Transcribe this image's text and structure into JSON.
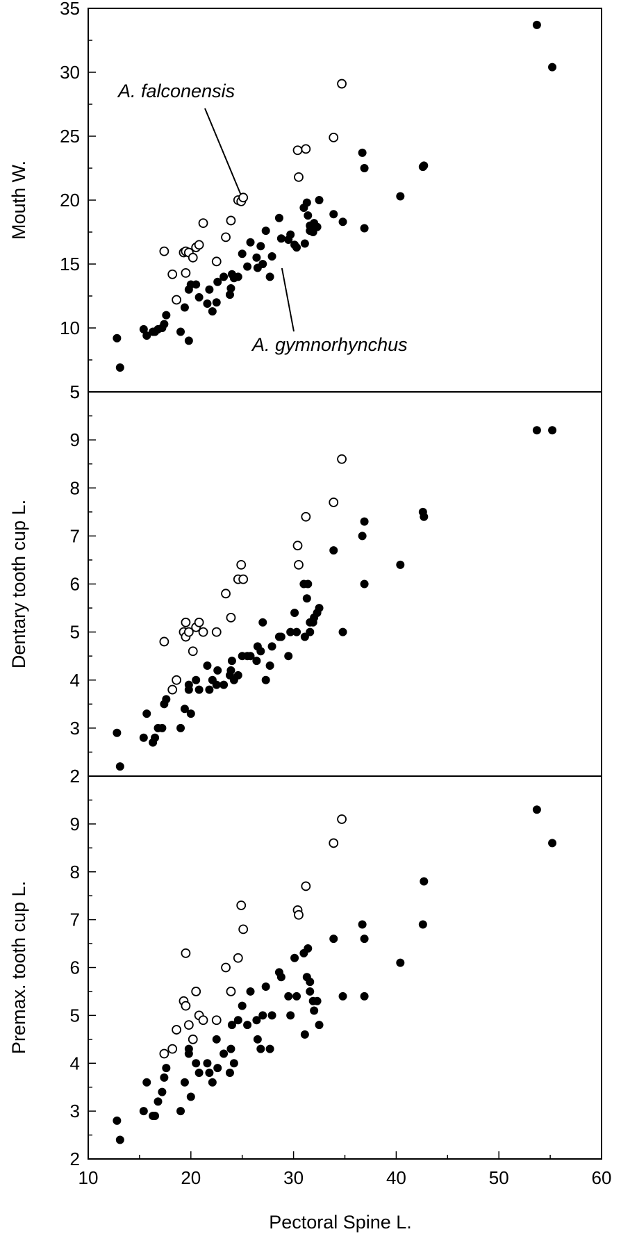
{
  "chart_data": [
    {
      "type": "scatter",
      "xlabel": "",
      "ylabel": "Mouth W.",
      "xlim": [
        10,
        60
      ],
      "ylim": [
        5,
        35
      ],
      "yticks": [
        5,
        10,
        15,
        20,
        25,
        30,
        35
      ],
      "ytick_labels": [
        "5",
        "10",
        "15",
        "20",
        "25",
        "30",
        "35"
      ],
      "grid": false,
      "annotations": [
        {
          "text": "A. falconensis",
          "points_to": [
            25.0,
            20.1
          ]
        },
        {
          "text": "A. gymnorhynchus",
          "points_to": [
            28.8,
            15.0
          ]
        }
      ],
      "series": [
        {
          "marker": "open-circle",
          "points": [
            [
              17.4,
              16.0
            ],
            [
              18.2,
              14.2
            ],
            [
              18.6,
              12.2
            ],
            [
              19.3,
              15.9
            ],
            [
              19.5,
              16.0
            ],
            [
              19.5,
              14.3
            ],
            [
              19.8,
              15.9
            ],
            [
              20.2,
              15.5
            ],
            [
              20.5,
              16.3
            ],
            [
              20.8,
              16.5
            ],
            [
              21.2,
              18.2
            ],
            [
              22.5,
              15.2
            ],
            [
              23.4,
              17.1
            ],
            [
              23.9,
              18.4
            ],
            [
              24.6,
              20.0
            ],
            [
              24.9,
              19.9
            ],
            [
              25.1,
              20.2
            ],
            [
              30.4,
              23.9
            ],
            [
              30.5,
              21.8
            ],
            [
              31.2,
              24.0
            ],
            [
              33.9,
              24.9
            ],
            [
              34.7,
              29.1
            ]
          ]
        },
        {
          "marker": "filled-circle",
          "points": [
            [
              12.8,
              9.2
            ],
            [
              13.1,
              6.9
            ],
            [
              15.4,
              9.9
            ],
            [
              15.7,
              9.4
            ],
            [
              16.3,
              9.7
            ],
            [
              16.5,
              9.7
            ],
            [
              16.8,
              9.9
            ],
            [
              17.2,
              10.0
            ],
            [
              17.4,
              10.3
            ],
            [
              17.6,
              11.0
            ],
            [
              19.0,
              9.7
            ],
            [
              19.4,
              11.6
            ],
            [
              19.8,
              9.0
            ],
            [
              19.8,
              13.0
            ],
            [
              20.0,
              13.4
            ],
            [
              20.5,
              13.4
            ],
            [
              20.8,
              12.4
            ],
            [
              21.6,
              11.9
            ],
            [
              21.8,
              13.0
            ],
            [
              22.1,
              11.3
            ],
            [
              22.5,
              12.0
            ],
            [
              22.6,
              13.6
            ],
            [
              23.2,
              14.0
            ],
            [
              23.8,
              12.6
            ],
            [
              23.9,
              13.1
            ],
            [
              24.0,
              14.2
            ],
            [
              24.2,
              13.9
            ],
            [
              24.6,
              14.0
            ],
            [
              25.0,
              15.8
            ],
            [
              25.5,
              14.8
            ],
            [
              25.8,
              16.7
            ],
            [
              26.4,
              15.5
            ],
            [
              26.5,
              14.7
            ],
            [
              26.8,
              16.4
            ],
            [
              27.0,
              15.0
            ],
            [
              27.3,
              17.6
            ],
            [
              27.7,
              14.0
            ],
            [
              27.9,
              15.6
            ],
            [
              28.6,
              18.6
            ],
            [
              28.8,
              17.0
            ],
            [
              29.5,
              16.9
            ],
            [
              29.7,
              17.3
            ],
            [
              30.1,
              16.5
            ],
            [
              30.3,
              16.3
            ],
            [
              31.0,
              19.4
            ],
            [
              31.1,
              16.6
            ],
            [
              31.3,
              19.8
            ],
            [
              31.4,
              18.8
            ],
            [
              31.6,
              17.6
            ],
            [
              31.6,
              18.0
            ],
            [
              31.9,
              17.5
            ],
            [
              32.0,
              18.2
            ],
            [
              32.3,
              17.9
            ],
            [
              32.5,
              20.0
            ],
            [
              33.9,
              18.9
            ],
            [
              34.8,
              18.3
            ],
            [
              36.7,
              23.7
            ],
            [
              36.9,
              22.5
            ],
            [
              36.9,
              17.8
            ],
            [
              40.4,
              20.3
            ],
            [
              42.6,
              22.6
            ],
            [
              42.7,
              22.7
            ],
            [
              53.7,
              33.7
            ],
            [
              55.2,
              30.4
            ]
          ]
        }
      ]
    },
    {
      "type": "scatter",
      "xlabel": "",
      "ylabel": "Dentary tooth cup L.",
      "xlim": [
        10,
        60
      ],
      "ylim": [
        2,
        10
      ],
      "yticks": [
        2,
        3,
        4,
        5,
        6,
        7,
        8,
        9
      ],
      "ytick_labels": [
        "2",
        "3",
        "4",
        "5",
        "6",
        "7",
        "8",
        "9"
      ],
      "top_tick_label": "5",
      "grid": false,
      "series": [
        {
          "marker": "open-circle",
          "points": [
            [
              17.4,
              4.8
            ],
            [
              18.2,
              3.8
            ],
            [
              18.6,
              4.0
            ],
            [
              19.3,
              5.0
            ],
            [
              19.5,
              5.2
            ],
            [
              19.5,
              4.9
            ],
            [
              19.8,
              5.0
            ],
            [
              20.2,
              4.6
            ],
            [
              20.5,
              5.1
            ],
            [
              20.8,
              5.2
            ],
            [
              21.2,
              5.0
            ],
            [
              22.5,
              5.0
            ],
            [
              23.4,
              5.8
            ],
            [
              23.9,
              5.3
            ],
            [
              24.6,
              6.1
            ],
            [
              24.9,
              6.4
            ],
            [
              25.1,
              6.1
            ],
            [
              30.4,
              6.8
            ],
            [
              30.5,
              6.4
            ],
            [
              31.2,
              7.4
            ],
            [
              33.9,
              7.7
            ],
            [
              34.7,
              8.6
            ]
          ]
        },
        {
          "marker": "filled-circle",
          "points": [
            [
              12.8,
              2.9
            ],
            [
              13.1,
              2.2
            ],
            [
              15.4,
              2.8
            ],
            [
              15.7,
              3.3
            ],
            [
              16.3,
              2.7
            ],
            [
              16.5,
              2.8
            ],
            [
              16.8,
              3.0
            ],
            [
              17.2,
              3.0
            ],
            [
              17.4,
              3.5
            ],
            [
              17.6,
              3.6
            ],
            [
              19.0,
              3.0
            ],
            [
              19.4,
              3.4
            ],
            [
              19.8,
              3.8
            ],
            [
              19.8,
              3.9
            ],
            [
              20.0,
              3.3
            ],
            [
              20.5,
              4.0
            ],
            [
              20.8,
              3.8
            ],
            [
              21.6,
              4.3
            ],
            [
              21.8,
              3.8
            ],
            [
              22.1,
              4.0
            ],
            [
              22.5,
              3.9
            ],
            [
              22.6,
              4.2
            ],
            [
              23.2,
              3.9
            ],
            [
              23.8,
              4.1
            ],
            [
              23.9,
              4.2
            ],
            [
              24.0,
              4.4
            ],
            [
              24.2,
              4.0
            ],
            [
              24.6,
              4.1
            ],
            [
              25.0,
              4.5
            ],
            [
              25.5,
              4.5
            ],
            [
              25.8,
              4.5
            ],
            [
              26.4,
              4.4
            ],
            [
              26.5,
              4.7
            ],
            [
              26.8,
              4.6
            ],
            [
              27.0,
              5.2
            ],
            [
              27.3,
              4.0
            ],
            [
              27.7,
              4.3
            ],
            [
              27.9,
              4.7
            ],
            [
              28.6,
              4.9
            ],
            [
              28.8,
              4.9
            ],
            [
              29.5,
              4.5
            ],
            [
              29.7,
              5.0
            ],
            [
              30.1,
              5.4
            ],
            [
              30.3,
              5.0
            ],
            [
              31.0,
              6.0
            ],
            [
              31.1,
              4.9
            ],
            [
              31.3,
              5.7
            ],
            [
              31.4,
              6.0
            ],
            [
              31.6,
              5.0
            ],
            [
              31.6,
              5.2
            ],
            [
              31.9,
              5.2
            ],
            [
              32.0,
              5.3
            ],
            [
              32.3,
              5.4
            ],
            [
              32.5,
              5.5
            ],
            [
              33.9,
              6.7
            ],
            [
              34.8,
              5.0
            ],
            [
              36.7,
              7.0
            ],
            [
              36.9,
              7.3
            ],
            [
              36.9,
              6.0
            ],
            [
              40.4,
              6.4
            ],
            [
              42.6,
              7.5
            ],
            [
              42.7,
              7.4
            ],
            [
              53.7,
              9.2
            ],
            [
              55.2,
              9.2
            ]
          ]
        }
      ]
    },
    {
      "type": "scatter",
      "xlabel": "Pectoral Spine L.",
      "ylabel": "Premax. tooth cup L.",
      "xlim": [
        10,
        60
      ],
      "xticks": [
        10,
        20,
        30,
        40,
        50,
        60
      ],
      "xtick_labels": [
        "10",
        "20",
        "30",
        "40",
        "50",
        "60"
      ],
      "ylim": [
        2,
        10
      ],
      "yticks": [
        2,
        3,
        4,
        5,
        6,
        7,
        8,
        9
      ],
      "ytick_labels": [
        "2",
        "3",
        "4",
        "5",
        "6",
        "7",
        "8",
        "9"
      ],
      "top_tick_label": "2",
      "grid": false,
      "series": [
        {
          "marker": "open-circle",
          "points": [
            [
              17.4,
              4.2
            ],
            [
              18.2,
              4.3
            ],
            [
              18.6,
              4.7
            ],
            [
              19.3,
              5.3
            ],
            [
              19.5,
              5.2
            ],
            [
              19.5,
              6.3
            ],
            [
              19.8,
              4.8
            ],
            [
              20.2,
              4.5
            ],
            [
              20.5,
              5.5
            ],
            [
              20.8,
              5.0
            ],
            [
              21.2,
              4.9
            ],
            [
              22.5,
              4.9
            ],
            [
              23.4,
              6.0
            ],
            [
              23.9,
              5.5
            ],
            [
              24.6,
              6.2
            ],
            [
              24.9,
              7.3
            ],
            [
              25.1,
              6.8
            ],
            [
              30.4,
              7.2
            ],
            [
              30.5,
              7.1
            ],
            [
              31.2,
              7.7
            ],
            [
              33.9,
              8.6
            ],
            [
              34.7,
              9.1
            ]
          ]
        },
        {
          "marker": "filled-circle",
          "points": [
            [
              12.8,
              2.8
            ],
            [
              13.1,
              2.4
            ],
            [
              15.4,
              3.0
            ],
            [
              15.7,
              3.6
            ],
            [
              16.3,
              2.9
            ],
            [
              16.5,
              2.9
            ],
            [
              16.8,
              3.2
            ],
            [
              17.2,
              3.4
            ],
            [
              17.4,
              3.7
            ],
            [
              17.6,
              3.9
            ],
            [
              19.0,
              3.0
            ],
            [
              19.4,
              3.6
            ],
            [
              19.8,
              4.3
            ],
            [
              19.8,
              4.2
            ],
            [
              20.0,
              3.3
            ],
            [
              20.5,
              4.0
            ],
            [
              20.8,
              3.8
            ],
            [
              21.6,
              4.0
            ],
            [
              21.8,
              3.8
            ],
            [
              22.1,
              3.6
            ],
            [
              22.5,
              4.5
            ],
            [
              22.6,
              3.9
            ],
            [
              23.2,
              4.2
            ],
            [
              23.8,
              3.8
            ],
            [
              23.9,
              4.3
            ],
            [
              24.0,
              4.8
            ],
            [
              24.2,
              4.0
            ],
            [
              24.6,
              4.9
            ],
            [
              25.0,
              5.2
            ],
            [
              25.5,
              4.8
            ],
            [
              25.8,
              5.5
            ],
            [
              26.4,
              4.9
            ],
            [
              26.5,
              4.5
            ],
            [
              26.8,
              4.3
            ],
            [
              27.0,
              5.0
            ],
            [
              27.3,
              5.6
            ],
            [
              27.7,
              4.3
            ],
            [
              27.9,
              5.0
            ],
            [
              28.6,
              5.9
            ],
            [
              28.8,
              5.8
            ],
            [
              29.5,
              5.4
            ],
            [
              29.7,
              5.0
            ],
            [
              30.1,
              6.2
            ],
            [
              30.3,
              5.4
            ],
            [
              31.0,
              6.3
            ],
            [
              31.1,
              4.6
            ],
            [
              31.3,
              5.8
            ],
            [
              31.4,
              6.4
            ],
            [
              31.6,
              5.5
            ],
            [
              31.6,
              5.7
            ],
            [
              31.9,
              5.3
            ],
            [
              32.0,
              5.1
            ],
            [
              32.3,
              5.3
            ],
            [
              32.5,
              4.8
            ],
            [
              33.9,
              6.6
            ],
            [
              34.8,
              5.4
            ],
            [
              36.7,
              6.9
            ],
            [
              36.9,
              6.6
            ],
            [
              36.9,
              5.4
            ],
            [
              40.4,
              6.1
            ],
            [
              42.6,
              6.9
            ],
            [
              42.7,
              7.8
            ],
            [
              53.7,
              9.3
            ],
            [
              55.2,
              8.6
            ]
          ]
        }
      ]
    }
  ]
}
